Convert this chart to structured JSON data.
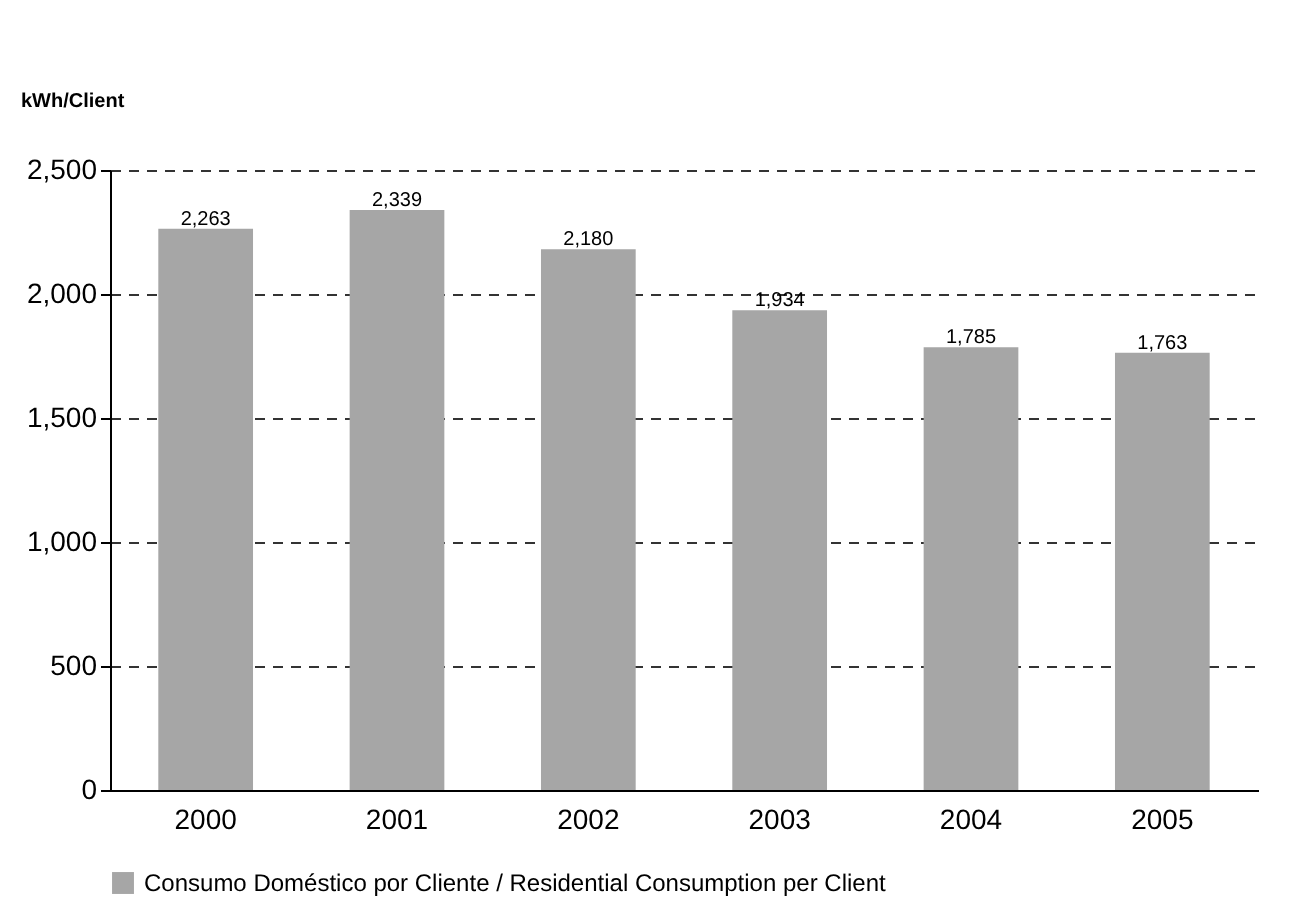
{
  "chart_data": {
    "type": "bar",
    "ylabel": "kWh/Client",
    "categories": [
      "2000",
      "2001",
      "2002",
      "2003",
      "2004",
      "2005"
    ],
    "series": [
      {
        "name": "Consumo Doméstico por Cliente / Residential Consumption per Client",
        "color": "#a6a6a6",
        "values": [
          2263,
          2339,
          2180,
          1934,
          1785,
          1763
        ],
        "value_labels": [
          "2,263",
          "2,339",
          "2,180",
          "1,934",
          "1,785",
          "1,763"
        ]
      }
    ],
    "ylim": [
      0,
      2500
    ],
    "yticks": [
      0,
      {
        "value": 500,
        "label": "500"
      },
      {
        "value": 1000,
        "label": "1,000"
      },
      {
        "value": 1500,
        "label": "1,500"
      },
      {
        "value": 2000,
        "label": "2,000"
      },
      {
        "value": 2500,
        "label": "2,500"
      }
    ],
    "grid": "y",
    "legend": "bottom"
  }
}
